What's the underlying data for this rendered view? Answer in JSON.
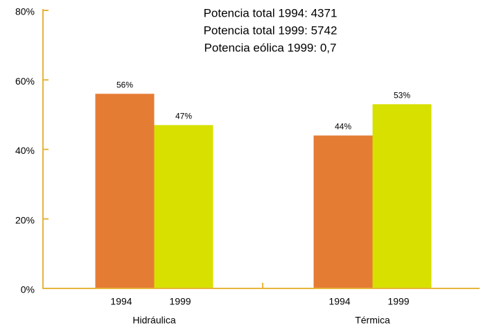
{
  "chart_data": {
    "type": "bar",
    "annotations": [
      "Potencia total 1994: 4371",
      "Potencia total 1999: 5742",
      "Potencia eólica 1999: 0,7"
    ],
    "categories": [
      "Hidráulica",
      "Térmica"
    ],
    "series": [
      {
        "name": "1994",
        "color": "#e57c34",
        "values": [
          56,
          44
        ],
        "value_labels": [
          "56%",
          "44%"
        ]
      },
      {
        "name": "1999",
        "color": "#d8e000",
        "values": [
          47,
          53
        ],
        "value_labels": [
          "47%",
          "53%"
        ]
      }
    ],
    "ylim": [
      0,
      80
    ],
    "yticks": [
      {
        "value": 0,
        "label": "0%"
      },
      {
        "value": 20,
        "label": "20%"
      },
      {
        "value": 40,
        "label": "40%"
      },
      {
        "value": 60,
        "label": "60%"
      },
      {
        "value": 80,
        "label": "80%"
      }
    ],
    "axis_color": "#e6b53a"
  }
}
